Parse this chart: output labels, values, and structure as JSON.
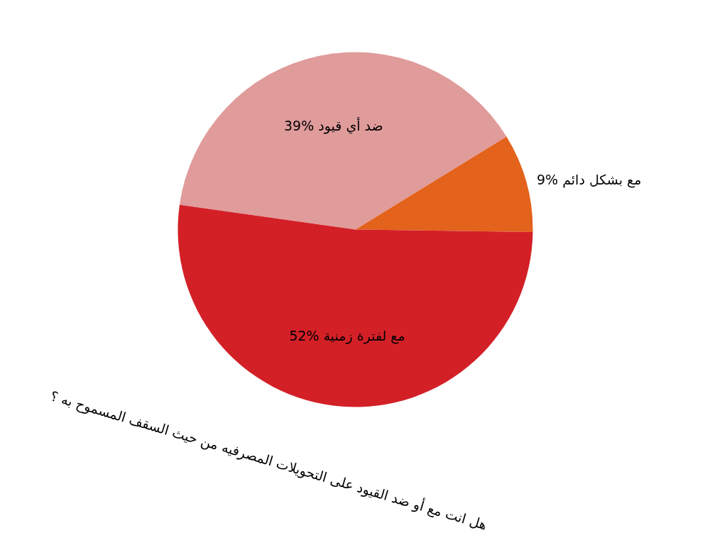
{
  "chart_data": {
    "type": "pie",
    "title": "هل انت مع أو ضد القيود على التحويلات المصرفيه من حيث السقف المسموح به ؟",
    "categories": [
      "ضد أي قيود",
      "مع بشكل دائم",
      "مع لفترة زمنية"
    ],
    "values": [
      39,
      9,
      52
    ],
    "colors": [
      "#e09b9b",
      "#e3621c",
      "#d32027"
    ],
    "value_labels": [
      "39%",
      "9%",
      "52%"
    ]
  }
}
